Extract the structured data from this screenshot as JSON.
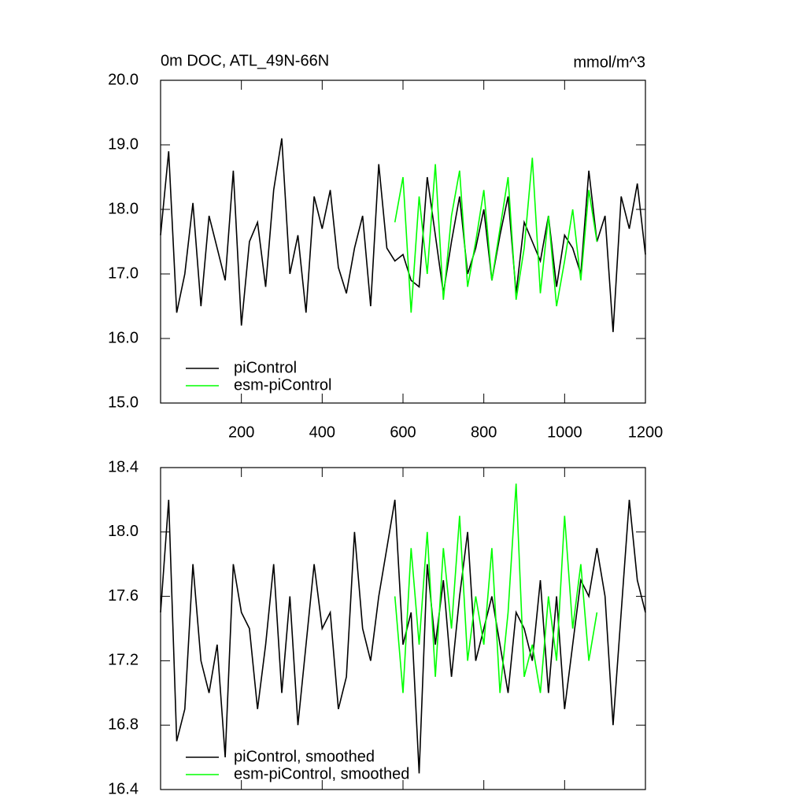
{
  "chart_data": [
    {
      "type": "line",
      "title": "0m DOC, ATL_49N-66N",
      "units": "mmol/m^3",
      "xlim": [
        0,
        1200
      ],
      "xticks": [
        200,
        400,
        600,
        800,
        1000,
        1200
      ],
      "ylim": [
        15,
        20
      ],
      "yticks": [
        {
          "value": 15,
          "label": "15.0"
        },
        {
          "value": 16,
          "label": "16.0"
        },
        {
          "value": 17,
          "label": "17.0"
        },
        {
          "value": 18,
          "label": "18.0"
        },
        {
          "value": 19,
          "label": "19.0"
        },
        {
          "value": 20,
          "label": "20.0"
        }
      ],
      "series": [
        {
          "name": "piControl",
          "color": "#000000",
          "x": [
            0,
            20,
            40,
            60,
            80,
            100,
            120,
            140,
            160,
            180,
            200,
            220,
            240,
            260,
            280,
            300,
            320,
            340,
            360,
            380,
            400,
            420,
            440,
            460,
            480,
            500,
            520,
            540,
            560,
            580,
            600,
            620,
            640,
            660,
            680,
            700,
            720,
            740,
            760,
            780,
            800,
            820,
            840,
            860,
            880,
            900,
            920,
            940,
            960,
            980,
            1000,
            1020,
            1040,
            1060,
            1080,
            1100,
            1120,
            1140,
            1160,
            1180,
            1200
          ],
          "values": [
            17.6,
            18.9,
            16.4,
            17.0,
            18.1,
            16.5,
            17.9,
            17.4,
            16.9,
            18.6,
            16.2,
            17.5,
            17.8,
            16.8,
            18.3,
            19.1,
            17.0,
            17.6,
            16.4,
            18.2,
            17.7,
            18.3,
            17.1,
            16.7,
            17.4,
            17.9,
            16.5,
            18.7,
            17.4,
            17.2,
            17.3,
            16.9,
            16.8,
            18.5,
            17.6,
            16.7,
            17.5,
            18.2,
            17.0,
            17.4,
            18.0,
            16.9,
            17.6,
            18.2,
            16.7,
            17.8,
            17.5,
            17.2,
            17.9,
            16.8,
            17.6,
            17.4,
            17.0,
            18.6,
            17.5,
            17.9,
            16.1,
            18.2,
            17.7,
            18.4,
            17.3
          ]
        },
        {
          "name": "esm-piControl",
          "color": "#00ff00",
          "x": [
            580,
            600,
            620,
            640,
            660,
            680,
            700,
            720,
            740,
            760,
            780,
            800,
            820,
            840,
            860,
            880,
            900,
            920,
            940,
            960,
            980,
            1000,
            1020,
            1040,
            1060,
            1080
          ],
          "values": [
            17.8,
            18.5,
            16.4,
            18.2,
            17.0,
            18.7,
            16.6,
            17.9,
            18.6,
            16.8,
            17.5,
            18.3,
            16.9,
            17.7,
            18.5,
            16.6,
            17.4,
            18.8,
            16.7,
            17.9,
            16.5,
            17.2,
            18.0,
            16.9,
            18.3,
            17.5
          ]
        }
      ]
    },
    {
      "type": "line",
      "xlim": [
        0,
        1200
      ],
      "xticks": [
        200,
        400,
        600,
        800,
        1000,
        1200
      ],
      "ylim": [
        16.4,
        18.4
      ],
      "yticks": [
        16.4,
        16.8,
        17.2,
        17.6,
        {
          "value": 18,
          "label": "18.0"
        },
        18.4
      ],
      "series": [
        {
          "name": "piControl, smoothed",
          "color": "#000000",
          "x": [
            0,
            20,
            40,
            60,
            80,
            100,
            120,
            140,
            160,
            180,
            200,
            220,
            240,
            260,
            280,
            300,
            320,
            340,
            360,
            380,
            400,
            420,
            440,
            460,
            480,
            500,
            520,
            540,
            560,
            580,
            600,
            620,
            640,
            660,
            680,
            700,
            720,
            740,
            760,
            780,
            800,
            820,
            840,
            860,
            880,
            900,
            920,
            940,
            960,
            980,
            1000,
            1020,
            1040,
            1060,
            1080,
            1100,
            1120,
            1140,
            1160,
            1180,
            1200
          ],
          "values": [
            17.5,
            18.2,
            16.7,
            16.9,
            17.8,
            17.2,
            17.0,
            17.3,
            16.6,
            17.8,
            17.5,
            17.4,
            16.9,
            17.3,
            17.8,
            17.0,
            17.6,
            16.8,
            17.3,
            17.8,
            17.4,
            17.5,
            16.9,
            17.1,
            18.0,
            17.4,
            17.2,
            17.6,
            17.9,
            18.2,
            17.3,
            17.5,
            16.5,
            17.8,
            17.3,
            17.7,
            17.1,
            17.6,
            18.0,
            17.2,
            17.4,
            17.6,
            17.3,
            17.0,
            17.5,
            17.4,
            17.2,
            17.7,
            17.0,
            17.6,
            16.9,
            17.3,
            17.7,
            17.6,
            17.9,
            17.6,
            16.8,
            17.5,
            18.2,
            17.7,
            17.5
          ]
        },
        {
          "name": "esm-piControl, smoothed",
          "color": "#00ff00",
          "x": [
            580,
            600,
            620,
            640,
            660,
            680,
            700,
            720,
            740,
            760,
            780,
            800,
            820,
            840,
            860,
            880,
            900,
            920,
            940,
            960,
            980,
            1000,
            1020,
            1040,
            1060,
            1080
          ],
          "values": [
            17.6,
            17.0,
            17.9,
            17.3,
            18.0,
            17.1,
            17.9,
            17.4,
            18.1,
            17.2,
            17.6,
            17.3,
            17.9,
            17.0,
            17.5,
            18.3,
            17.1,
            17.3,
            17.0,
            17.6,
            17.2,
            18.1,
            17.4,
            17.8,
            17.2,
            17.5
          ]
        }
      ]
    }
  ]
}
